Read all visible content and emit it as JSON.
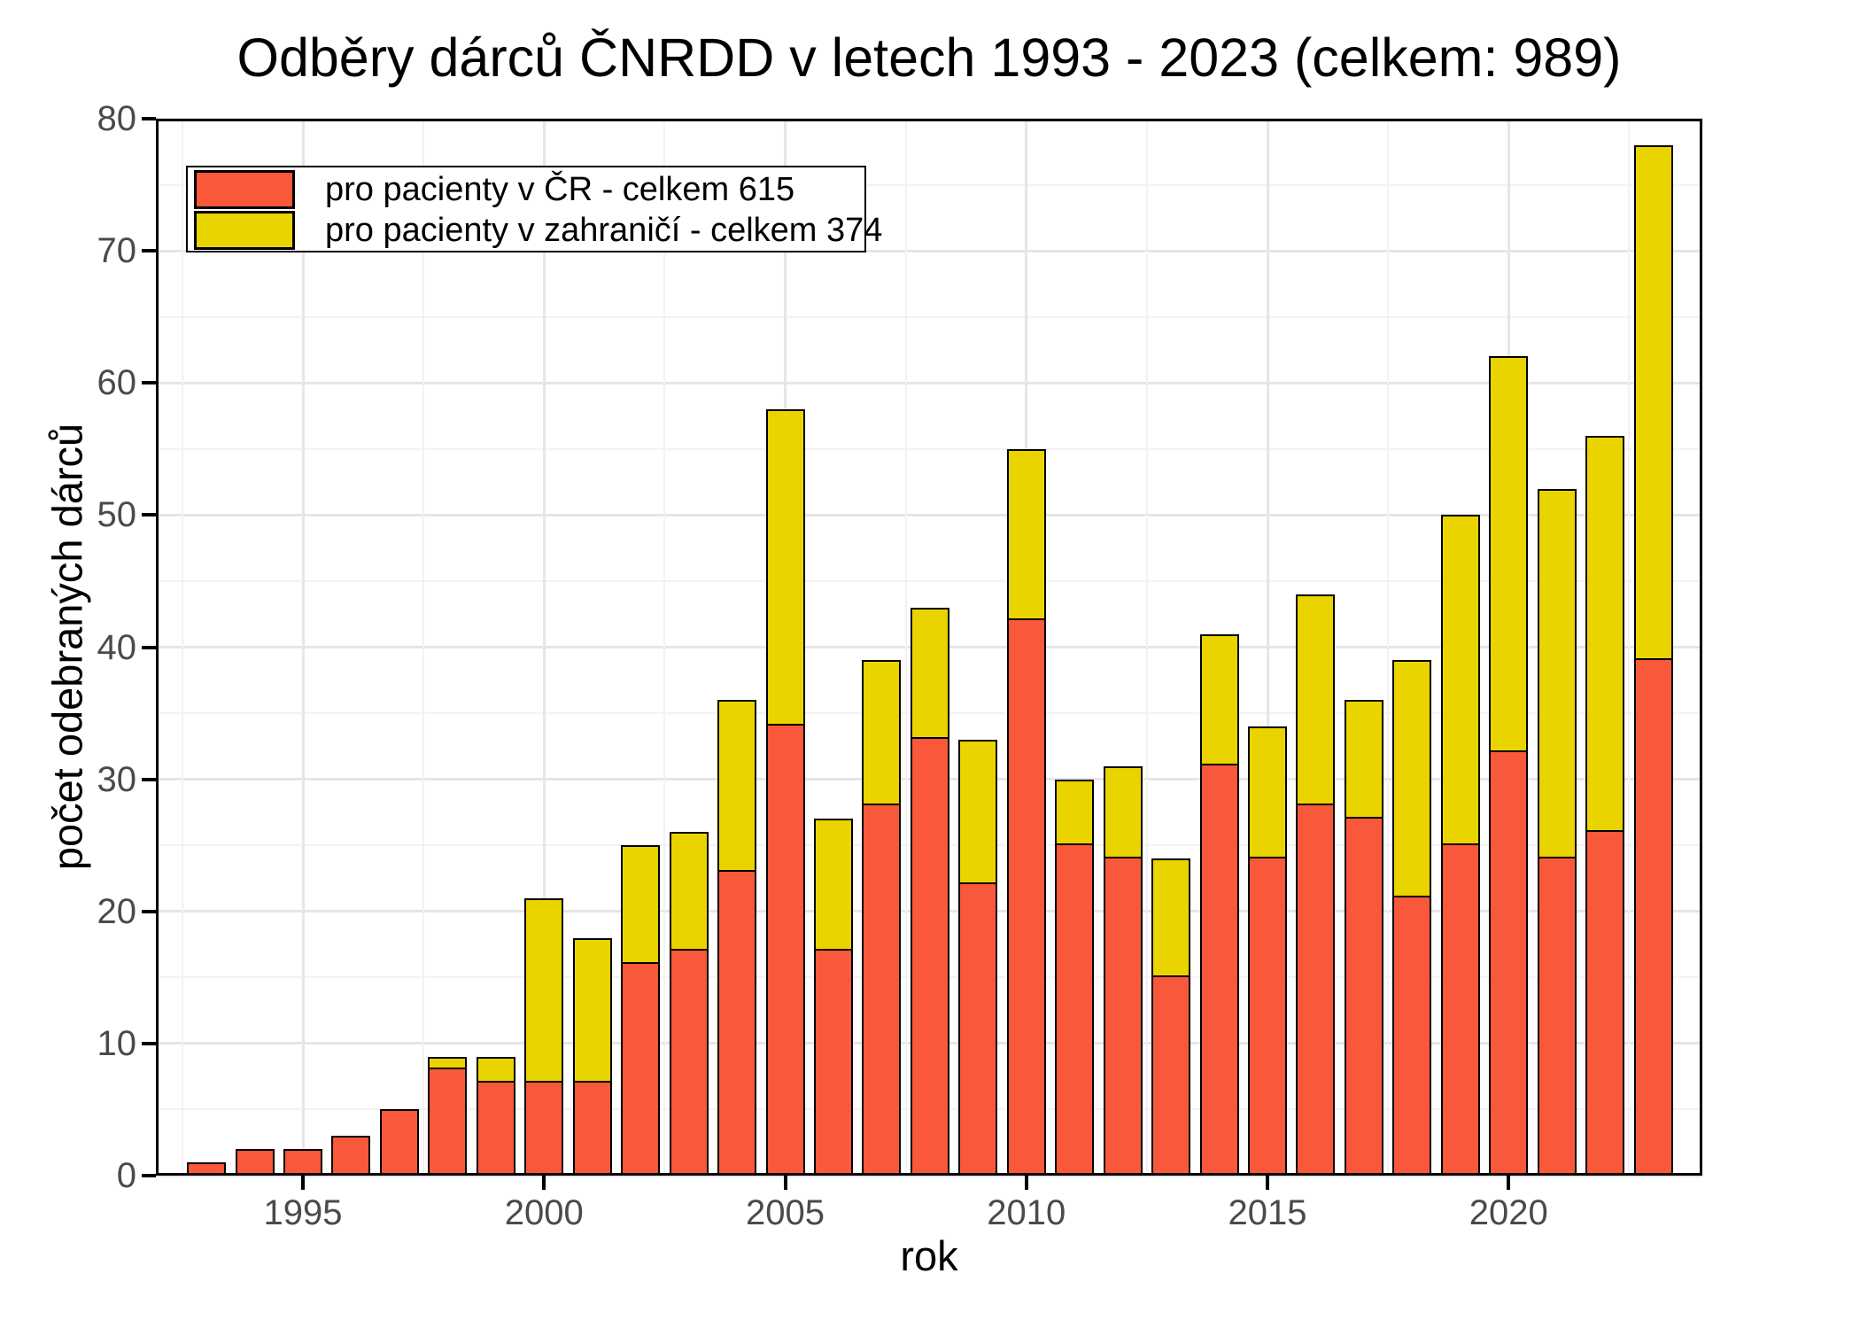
{
  "title": "Odběry dárců ČNRDD v letech 1993 - 2023 (celkem: 989)",
  "axes": {
    "x_label": "rok",
    "y_label": "počet odebraných dárců",
    "x_ticks": [
      1995,
      2000,
      2005,
      2010,
      2015,
      2020
    ],
    "y_ticks": [
      0,
      10,
      20,
      30,
      40,
      50,
      60,
      70,
      80
    ]
  },
  "colors": {
    "cr_fill": "#F9583A",
    "zahranici_fill": "#E9D400",
    "bar_stroke": "#000000",
    "grid_major": "#e6e6e6",
    "grid_minor": "#f2f2f2",
    "tick_label": "#4a4a4a",
    "text": "#000000"
  },
  "legend": {
    "items": [
      {
        "key": "cr",
        "label": "pro pacienty v ČR - celkem 615",
        "color": "#F9583A"
      },
      {
        "key": "zahranici",
        "label": "pro pacienty v zahraničí - celkem 374",
        "color": "#E9D400"
      }
    ]
  },
  "chart_data": {
    "type": "bar",
    "stacked": true,
    "title": "Odběry dárců ČNRDD v letech 1993 - 2023 (celkem: 989)",
    "xlabel": "rok",
    "ylabel": "počet odebraných dárců",
    "ylim": [
      0,
      80
    ],
    "grid": true,
    "legend_position": "top-left-inside",
    "x_major_ticks": [
      1995,
      2000,
      2005,
      2010,
      2015,
      2020
    ],
    "x_minor_ticks": [
      1992.5,
      1997.5,
      2002.5,
      2007.5,
      2012.5,
      2017.5,
      2022.5
    ],
    "y_major_ticks": [
      0,
      10,
      20,
      30,
      40,
      50,
      60,
      70,
      80
    ],
    "y_minor_ticks": [
      5,
      15,
      25,
      35,
      45,
      55,
      65,
      75
    ],
    "categories": [
      1993,
      1994,
      1995,
      1996,
      1997,
      1998,
      1999,
      2000,
      2001,
      2002,
      2003,
      2004,
      2005,
      2006,
      2007,
      2008,
      2009,
      2010,
      2011,
      2012,
      2013,
      2014,
      2015,
      2016,
      2017,
      2018,
      2019,
      2020,
      2021,
      2022,
      2023
    ],
    "series": [
      {
        "name": "pro pacienty v ČR - celkem 615",
        "total": 615,
        "color": "#F9583A",
        "values": [
          1,
          2,
          2,
          3,
          5,
          8,
          7,
          7,
          7,
          16,
          17,
          23,
          34,
          17,
          28,
          33,
          22,
          42,
          25,
          24,
          15,
          31,
          24,
          28,
          27,
          21,
          25,
          32,
          24,
          26,
          39
        ]
      },
      {
        "name": "pro pacienty v zahraničí - celkem 374",
        "total": 374,
        "color": "#E9D400",
        "values": [
          0,
          0,
          0,
          0,
          0,
          1,
          2,
          14,
          11,
          9,
          9,
          13,
          24,
          10,
          11,
          10,
          11,
          13,
          5,
          7,
          9,
          10,
          10,
          16,
          9,
          18,
          25,
          30,
          28,
          30,
          39
        ]
      }
    ],
    "stack_totals": [
      1,
      2,
      2,
      3,
      5,
      9,
      9,
      21,
      18,
      25,
      26,
      36,
      58,
      27,
      39,
      43,
      33,
      55,
      30,
      31,
      24,
      41,
      34,
      44,
      36,
      39,
      50,
      62,
      52,
      56,
      78
    ],
    "grand_total": 989
  }
}
